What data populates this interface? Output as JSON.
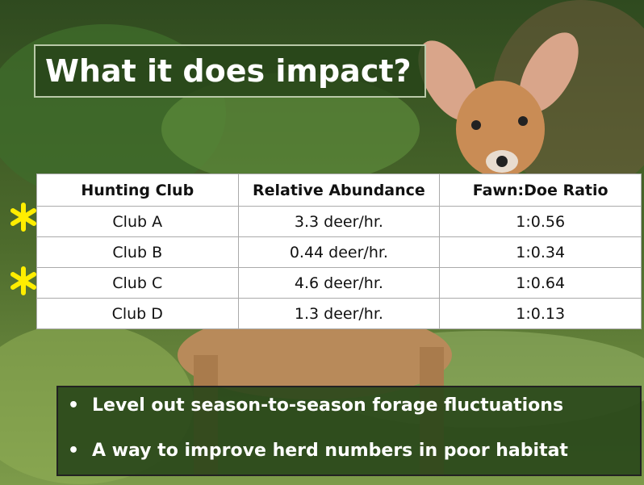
{
  "title": "What it does impact?",
  "table": {
    "header": [
      "Hunting Club",
      "Relative Abundance",
      "Fawn:Doe Ratio"
    ],
    "rows": [
      [
        "Club A",
        "3.3 deer/hr.",
        "1:0.56"
      ],
      [
        "Club B",
        "0.44 deer/hr.",
        "1:0.34"
      ],
      [
        "Club C",
        "4.6 deer/hr.",
        "1:0.64"
      ],
      [
        "Club D",
        "1.3 deer/hr.",
        "1:0.13"
      ]
    ]
  },
  "bullets": [
    "Level out season-to-season forage fluctuations",
    "A way to improve herd numbers in poor habitat"
  ]
}
